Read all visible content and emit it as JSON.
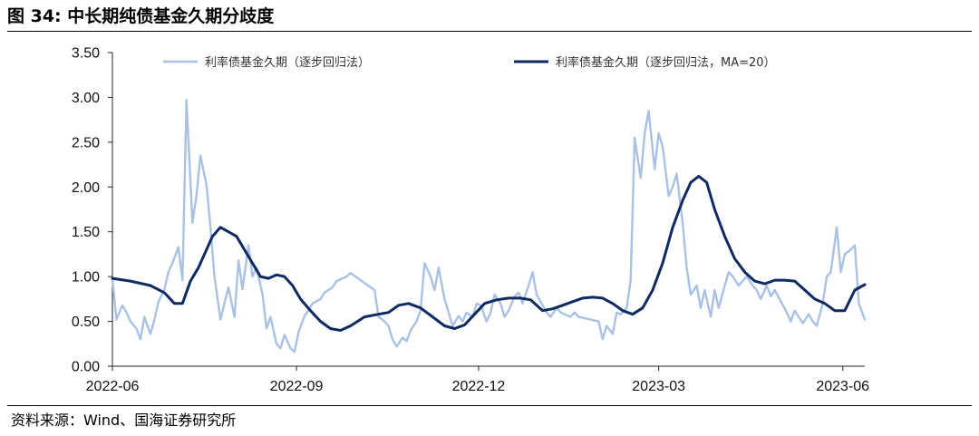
{
  "header": {
    "title": "图 34:  中长期纯债基金久期分歧度"
  },
  "footer": {
    "source": "资料来源：Wind、国海证券研究所"
  },
  "chart_data": {
    "type": "line",
    "title": "图 34:  中长期纯债基金久期分歧度",
    "xlabel": "",
    "ylabel": "",
    "ylim": [
      0,
      3.5
    ],
    "yticks": [
      "0.00",
      "0.50",
      "1.00",
      "1.50",
      "2.00",
      "2.50",
      "3.00",
      "3.50"
    ],
    "xticks": [
      "2022-06",
      "2022-09",
      "2022-12",
      "2023-03",
      "2023-06"
    ],
    "grid": false,
    "legend_position": "top",
    "series": [
      {
        "name": "利率债基金久期（逐步回归法）",
        "color": "#a9c1e3",
        "points": [
          [
            "2022-06-01",
            0.98
          ],
          [
            "2022-06-03",
            0.52
          ],
          [
            "2022-06-06",
            0.68
          ],
          [
            "2022-06-08",
            0.6
          ],
          [
            "2022-06-10",
            0.5
          ],
          [
            "2022-06-13",
            0.42
          ],
          [
            "2022-06-15",
            0.3
          ],
          [
            "2022-06-17",
            0.55
          ],
          [
            "2022-06-20",
            0.36
          ],
          [
            "2022-06-22",
            0.52
          ],
          [
            "2022-06-24",
            0.72
          ],
          [
            "2022-06-27",
            0.86
          ],
          [
            "2022-06-29",
            1.05
          ],
          [
            "2022-07-01",
            1.15
          ],
          [
            "2022-07-04",
            1.33
          ],
          [
            "2022-07-06",
            0.96
          ],
          [
            "2022-07-08",
            2.97
          ],
          [
            "2022-07-11",
            1.6
          ],
          [
            "2022-07-13",
            1.9
          ],
          [
            "2022-07-15",
            2.35
          ],
          [
            "2022-07-18",
            2.02
          ],
          [
            "2022-07-20",
            1.55
          ],
          [
            "2022-07-22",
            1.0
          ],
          [
            "2022-07-25",
            0.52
          ],
          [
            "2022-07-27",
            0.7
          ],
          [
            "2022-07-29",
            0.88
          ],
          [
            "2022-08-01",
            0.55
          ],
          [
            "2022-08-03",
            1.18
          ],
          [
            "2022-08-05",
            0.86
          ],
          [
            "2022-08-08",
            1.35
          ],
          [
            "2022-08-10",
            1.0
          ],
          [
            "2022-08-12",
            1.1
          ],
          [
            "2022-08-15",
            0.8
          ],
          [
            "2022-08-17",
            0.42
          ],
          [
            "2022-08-19",
            0.55
          ],
          [
            "2022-08-22",
            0.25
          ],
          [
            "2022-08-24",
            0.2
          ],
          [
            "2022-08-26",
            0.35
          ],
          [
            "2022-08-29",
            0.2
          ],
          [
            "2022-08-31",
            0.16
          ],
          [
            "2022-09-02",
            0.38
          ],
          [
            "2022-09-05",
            0.56
          ],
          [
            "2022-09-07",
            0.62
          ],
          [
            "2022-09-09",
            0.7
          ],
          [
            "2022-09-13",
            0.75
          ],
          [
            "2022-09-15",
            0.82
          ],
          [
            "2022-09-19",
            0.88
          ],
          [
            "2022-09-21",
            0.95
          ],
          [
            "2022-09-26",
            1.0
          ],
          [
            "2022-09-28",
            1.04
          ],
          [
            "2022-10-10",
            0.85
          ],
          [
            "2022-10-12",
            0.55
          ],
          [
            "2022-10-14",
            0.52
          ],
          [
            "2022-10-17",
            0.45
          ],
          [
            "2022-10-19",
            0.3
          ],
          [
            "2022-10-21",
            0.22
          ],
          [
            "2022-10-24",
            0.32
          ],
          [
            "2022-10-26",
            0.28
          ],
          [
            "2022-10-28",
            0.4
          ],
          [
            "2022-10-31",
            0.5
          ],
          [
            "2022-11-02",
            0.62
          ],
          [
            "2022-11-04",
            1.15
          ],
          [
            "2022-11-07",
            1.0
          ],
          [
            "2022-11-09",
            0.85
          ],
          [
            "2022-11-11",
            1.1
          ],
          [
            "2022-11-14",
            0.75
          ],
          [
            "2022-11-16",
            0.6
          ],
          [
            "2022-11-18",
            0.45
          ],
          [
            "2022-11-21",
            0.56
          ],
          [
            "2022-11-23",
            0.5
          ],
          [
            "2022-11-25",
            0.6
          ],
          [
            "2022-11-28",
            0.55
          ],
          [
            "2022-11-30",
            0.7
          ],
          [
            "2022-12-02",
            0.68
          ],
          [
            "2022-12-05",
            0.5
          ],
          [
            "2022-12-07",
            0.6
          ],
          [
            "2022-12-09",
            0.8
          ],
          [
            "2022-12-12",
            0.7
          ],
          [
            "2022-12-14",
            0.55
          ],
          [
            "2022-12-16",
            0.62
          ],
          [
            "2022-12-19",
            0.78
          ],
          [
            "2022-12-21",
            0.82
          ],
          [
            "2022-12-23",
            0.7
          ],
          [
            "2022-12-26",
            0.9
          ],
          [
            "2022-12-28",
            1.05
          ],
          [
            "2022-12-30",
            0.8
          ],
          [
            "2023-01-04",
            0.6
          ],
          [
            "2023-01-06",
            0.55
          ],
          [
            "2023-01-09",
            0.65
          ],
          [
            "2023-01-11",
            0.6
          ],
          [
            "2023-01-13",
            0.58
          ],
          [
            "2023-01-16",
            0.55
          ],
          [
            "2023-01-18",
            0.6
          ],
          [
            "2023-01-20",
            0.55
          ],
          [
            "2023-01-30",
            0.5
          ],
          [
            "2023-02-01",
            0.3
          ],
          [
            "2023-02-03",
            0.45
          ],
          [
            "2023-02-06",
            0.36
          ],
          [
            "2023-02-08",
            0.6
          ],
          [
            "2023-02-10",
            0.58
          ],
          [
            "2023-02-13",
            0.65
          ],
          [
            "2023-02-15",
            0.95
          ],
          [
            "2023-02-17",
            2.55
          ],
          [
            "2023-02-20",
            2.1
          ],
          [
            "2023-02-22",
            2.6
          ],
          [
            "2023-02-24",
            2.85
          ],
          [
            "2023-02-27",
            2.2
          ],
          [
            "2023-03-01",
            2.6
          ],
          [
            "2023-03-03",
            2.45
          ],
          [
            "2023-03-06",
            1.9
          ],
          [
            "2023-03-08",
            2.0
          ],
          [
            "2023-03-10",
            2.15
          ],
          [
            "2023-03-13",
            1.6
          ],
          [
            "2023-03-15",
            1.1
          ],
          [
            "2023-03-17",
            0.8
          ],
          [
            "2023-03-20",
            0.9
          ],
          [
            "2023-03-22",
            0.65
          ],
          [
            "2023-03-24",
            0.85
          ],
          [
            "2023-03-27",
            0.55
          ],
          [
            "2023-03-29",
            0.85
          ],
          [
            "2023-03-31",
            0.65
          ],
          [
            "2023-04-03",
            0.9
          ],
          [
            "2023-04-05",
            1.05
          ],
          [
            "2023-04-07",
            1.0
          ],
          [
            "2023-04-10",
            0.9
          ],
          [
            "2023-04-12",
            0.95
          ],
          [
            "2023-04-14",
            1.0
          ],
          [
            "2023-04-17",
            0.9
          ],
          [
            "2023-04-19",
            0.85
          ],
          [
            "2023-04-21",
            0.75
          ],
          [
            "2023-04-24",
            0.9
          ],
          [
            "2023-04-26",
            0.78
          ],
          [
            "2023-04-28",
            0.85
          ],
          [
            "2023-05-04",
            0.6
          ],
          [
            "2023-05-06",
            0.5
          ],
          [
            "2023-05-08",
            0.62
          ],
          [
            "2023-05-10",
            0.55
          ],
          [
            "2023-05-12",
            0.48
          ],
          [
            "2023-05-15",
            0.58
          ],
          [
            "2023-05-17",
            0.5
          ],
          [
            "2023-05-19",
            0.45
          ],
          [
            "2023-05-22",
            0.7
          ],
          [
            "2023-05-24",
            1.0
          ],
          [
            "2023-05-26",
            1.05
          ],
          [
            "2023-05-29",
            1.55
          ],
          [
            "2023-05-31",
            1.05
          ],
          [
            "2023-06-02",
            1.25
          ],
          [
            "2023-06-05",
            1.3
          ],
          [
            "2023-06-07",
            1.35
          ],
          [
            "2023-06-09",
            0.7
          ],
          [
            "2023-06-12",
            0.52
          ]
        ]
      },
      {
        "name": "利率债基金久期（逐步回归法，MA=20）",
        "color": "#0f2a60",
        "points": [
          [
            "2022-06-01",
            0.98
          ],
          [
            "2022-06-10",
            0.95
          ],
          [
            "2022-06-20",
            0.9
          ],
          [
            "2022-06-27",
            0.82
          ],
          [
            "2022-07-02",
            0.7
          ],
          [
            "2022-07-06",
            0.7
          ],
          [
            "2022-07-10",
            0.95
          ],
          [
            "2022-07-14",
            1.1
          ],
          [
            "2022-07-18",
            1.3
          ],
          [
            "2022-07-21",
            1.45
          ],
          [
            "2022-07-25",
            1.55
          ],
          [
            "2022-07-29",
            1.5
          ],
          [
            "2022-08-02",
            1.45
          ],
          [
            "2022-08-06",
            1.3
          ],
          [
            "2022-08-10",
            1.15
          ],
          [
            "2022-08-14",
            1.0
          ],
          [
            "2022-08-18",
            0.98
          ],
          [
            "2022-08-22",
            1.02
          ],
          [
            "2022-08-26",
            1.0
          ],
          [
            "2022-08-30",
            0.9
          ],
          [
            "2022-09-03",
            0.75
          ],
          [
            "2022-09-08",
            0.62
          ],
          [
            "2022-09-13",
            0.5
          ],
          [
            "2022-09-18",
            0.42
          ],
          [
            "2022-09-23",
            0.4
          ],
          [
            "2022-09-28",
            0.45
          ],
          [
            "2022-10-05",
            0.55
          ],
          [
            "2022-10-12",
            0.58
          ],
          [
            "2022-10-17",
            0.6
          ],
          [
            "2022-10-22",
            0.68
          ],
          [
            "2022-10-27",
            0.7
          ],
          [
            "2022-11-02",
            0.65
          ],
          [
            "2022-11-08",
            0.55
          ],
          [
            "2022-11-14",
            0.45
          ],
          [
            "2022-11-19",
            0.42
          ],
          [
            "2022-11-24",
            0.46
          ],
          [
            "2022-11-29",
            0.58
          ],
          [
            "2022-12-04",
            0.7
          ],
          [
            "2022-12-10",
            0.74
          ],
          [
            "2022-12-16",
            0.76
          ],
          [
            "2022-12-22",
            0.76
          ],
          [
            "2022-12-27",
            0.74
          ],
          [
            "2023-01-02",
            0.62
          ],
          [
            "2023-01-07",
            0.64
          ],
          [
            "2023-01-12",
            0.68
          ],
          [
            "2023-01-17",
            0.72
          ],
          [
            "2023-01-22",
            0.76
          ],
          [
            "2023-01-27",
            0.77
          ],
          [
            "2023-02-01",
            0.76
          ],
          [
            "2023-02-06",
            0.7
          ],
          [
            "2023-02-11",
            0.62
          ],
          [
            "2023-02-16",
            0.58
          ],
          [
            "2023-02-21",
            0.65
          ],
          [
            "2023-02-26",
            0.85
          ],
          [
            "2023-03-03",
            1.15
          ],
          [
            "2023-03-08",
            1.55
          ],
          [
            "2023-03-13",
            1.85
          ],
          [
            "2023-03-17",
            2.05
          ],
          [
            "2023-03-21",
            2.12
          ],
          [
            "2023-03-25",
            2.05
          ],
          [
            "2023-03-29",
            1.75
          ],
          [
            "2023-04-03",
            1.45
          ],
          [
            "2023-04-08",
            1.2
          ],
          [
            "2023-04-13",
            1.05
          ],
          [
            "2023-04-18",
            0.95
          ],
          [
            "2023-04-23",
            0.92
          ],
          [
            "2023-04-28",
            0.96
          ],
          [
            "2023-05-03",
            0.96
          ],
          [
            "2023-05-08",
            0.95
          ],
          [
            "2023-05-13",
            0.85
          ],
          [
            "2023-05-18",
            0.75
          ],
          [
            "2023-05-23",
            0.7
          ],
          [
            "2023-05-28",
            0.62
          ],
          [
            "2023-06-02",
            0.62
          ],
          [
            "2023-06-07",
            0.85
          ],
          [
            "2023-06-12",
            0.91
          ]
        ]
      }
    ]
  }
}
